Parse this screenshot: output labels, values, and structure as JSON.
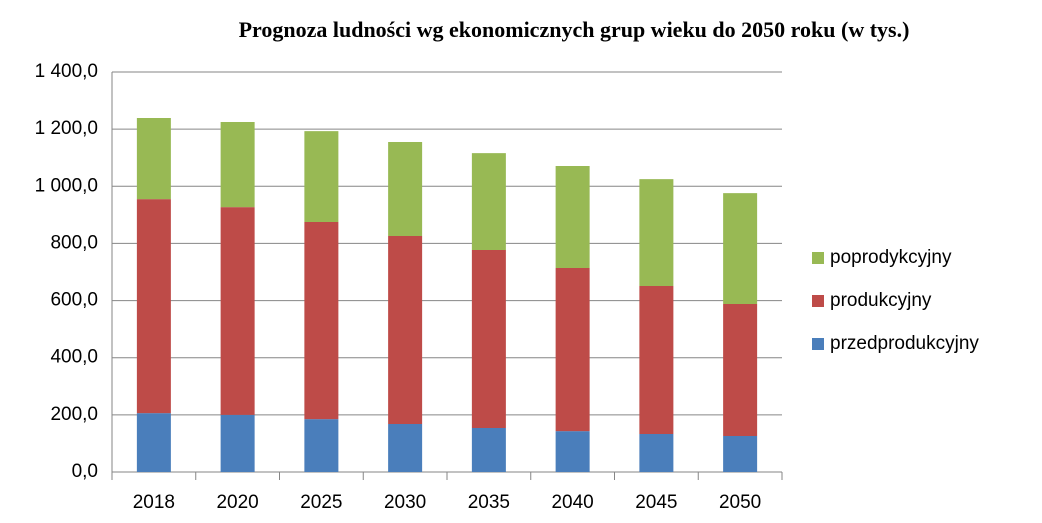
{
  "chart_data": {
    "type": "stacked_bar",
    "title": "Prognoza ludności wg ekonomicznych grup wieku do 2050 roku (w tys.)",
    "categories": [
      "2018",
      "2020",
      "2025",
      "2030",
      "2035",
      "2040",
      "2045",
      "2050"
    ],
    "series": [
      {
        "name": "przedprodukcyjny",
        "color": "#4a7ebb",
        "values": [
          206,
          200,
          185,
          168,
          154,
          143,
          133,
          126
        ]
      },
      {
        "name": "produkcyjny",
        "color": "#be4b48",
        "values": [
          749,
          727,
          690,
          658,
          623,
          571,
          518,
          462
        ]
      },
      {
        "name": "poprodykcyjny",
        "color": "#98b954",
        "values": [
          284,
          298,
          318,
          329,
          339,
          357,
          374,
          388
        ]
      }
    ],
    "ylim": [
      0,
      1400
    ],
    "yticks": [
      {
        "value": 0,
        "label": "0,0"
      },
      {
        "value": 200,
        "label": "200,0"
      },
      {
        "value": 400,
        "label": "400,0"
      },
      {
        "value": 600,
        "label": "600,0"
      },
      {
        "value": 800,
        "label": "800,0"
      },
      {
        "value": 1000,
        "label": "1 000,0"
      },
      {
        "value": 1200,
        "label": "1 200,0"
      },
      {
        "value": 1400,
        "label": "1 400,0"
      }
    ],
    "grid": true,
    "legend": "right"
  }
}
